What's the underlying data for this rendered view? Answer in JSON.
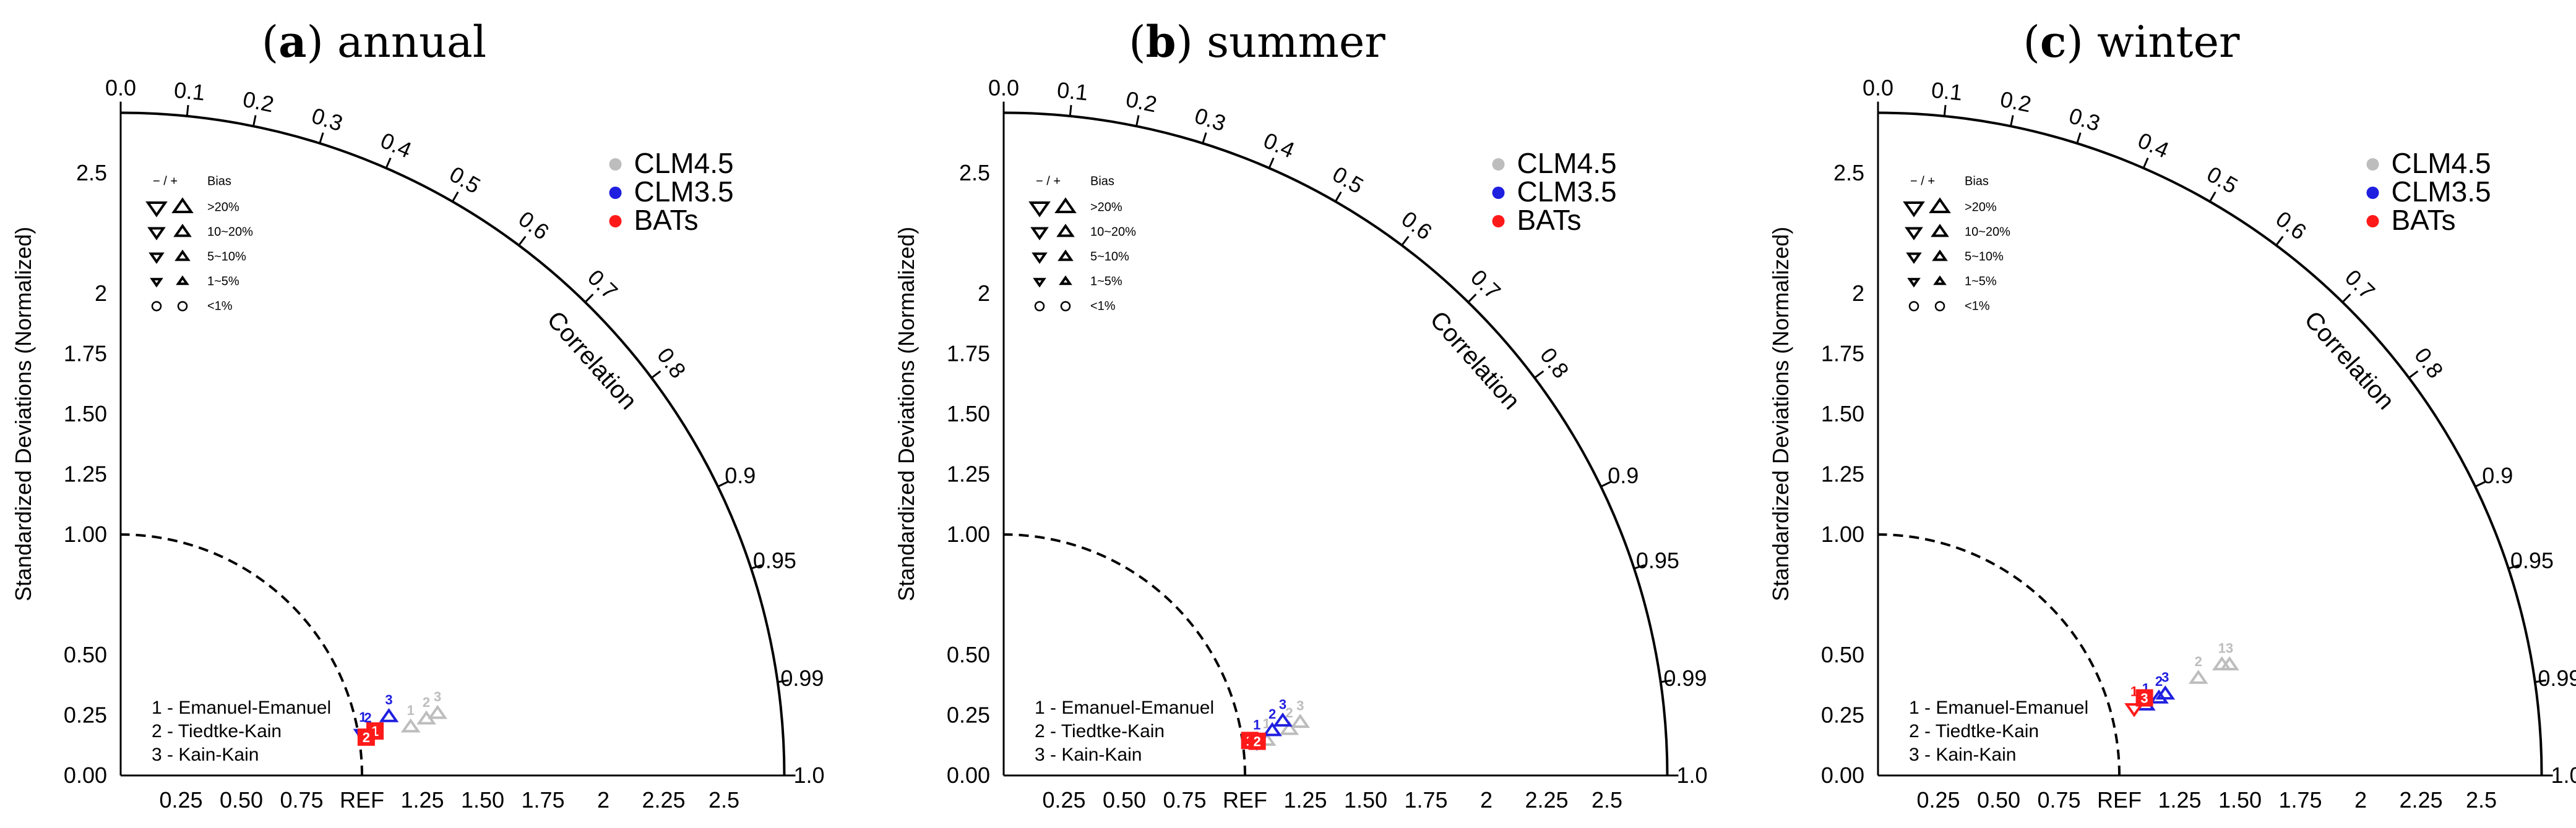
{
  "chart_data": [
    {
      "type": "scatter",
      "panel_letter": "(a)",
      "title": "annual",
      "points": [
        {
          "model": "CLM4.5",
          "exp": "1",
          "sd": 1.22,
          "corr": 0.985,
          "shape": "up"
        },
        {
          "model": "CLM4.5",
          "exp": "2",
          "sd": 1.29,
          "corr": 0.982,
          "shape": "up"
        },
        {
          "model": "CLM4.5",
          "exp": "3",
          "sd": 1.34,
          "corr": 0.98,
          "shape": "up"
        },
        {
          "model": "CLM3.5",
          "exp": "1",
          "sd": 1.02,
          "corr": 0.984,
          "shape": "down"
        },
        {
          "model": "CLM3.5",
          "exp": "2",
          "sd": 1.04,
          "corr": 0.985,
          "shape": "down"
        },
        {
          "model": "CLM3.5",
          "exp": "3",
          "sd": 1.14,
          "corr": 0.975,
          "shape": "up"
        },
        {
          "model": "BATs",
          "exp": "1",
          "sd": 1.07,
          "corr": 0.985,
          "shape": "square"
        },
        {
          "model": "BATs",
          "exp": "2",
          "sd": 1.03,
          "corr": 0.988,
          "shape": "square"
        }
      ]
    },
    {
      "type": "scatter",
      "panel_letter": "(b)",
      "title": "summer",
      "points": [
        {
          "model": "CLM4.5",
          "exp": "1",
          "sd": 1.1,
          "corr": 0.99,
          "shape": "up"
        },
        {
          "model": "CLM4.5",
          "exp": "2",
          "sd": 1.2,
          "corr": 0.986,
          "shape": "up"
        },
        {
          "model": "CLM4.5",
          "exp": "3",
          "sd": 1.25,
          "corr": 0.983,
          "shape": "up"
        },
        {
          "model": "CLM3.5",
          "exp": "1",
          "sd": 1.06,
          "corr": 0.99,
          "shape": "down"
        },
        {
          "model": "CLM3.5",
          "exp": "2",
          "sd": 1.13,
          "corr": 0.985,
          "shape": "up"
        },
        {
          "model": "CLM3.5",
          "exp": "3",
          "sd": 1.18,
          "corr": 0.98,
          "shape": "up"
        },
        {
          "model": "BATs",
          "exp": "1",
          "sd": 1.03,
          "corr": 0.99,
          "shape": "square"
        },
        {
          "model": "BATs",
          "exp": "2",
          "sd": 1.06,
          "corr": 0.991,
          "shape": "square"
        }
      ]
    },
    {
      "type": "scatter",
      "panel_letter": "(c)",
      "title": "winter",
      "points": [
        {
          "model": "CLM4.5",
          "exp": "1",
          "sd": 1.5,
          "corr": 0.95,
          "shape": "up"
        },
        {
          "model": "CLM4.5",
          "exp": "2",
          "sd": 1.39,
          "corr": 0.955,
          "shape": "up"
        },
        {
          "model": "CLM4.5",
          "exp": "3",
          "sd": 1.53,
          "corr": 0.952,
          "shape": "up"
        },
        {
          "model": "CLM3.5",
          "exp": "1",
          "sd": 1.15,
          "corr": 0.965,
          "shape": "up"
        },
        {
          "model": "CLM3.5",
          "exp": "2",
          "sd": 1.21,
          "corr": 0.962,
          "shape": "up"
        },
        {
          "model": "CLM3.5",
          "exp": "3",
          "sd": 1.24,
          "corr": 0.96,
          "shape": "up"
        },
        {
          "model": "BATs",
          "exp": "1",
          "sd": 1.1,
          "corr": 0.965,
          "shape": "down"
        },
        {
          "model": "BATs",
          "exp": "3",
          "sd": 1.15,
          "corr": 0.96,
          "shape": "square"
        }
      ]
    }
  ],
  "shared": {
    "y_label": "Standardized Deviations (Normalized)",
    "corr_label": "Correlation",
    "ref_label": "REF",
    "x_ticks": [
      "0.25",
      "0.50",
      "0.75",
      "REF",
      "1.25",
      "1.50",
      "1.75",
      "2",
      "2.25",
      "2.5"
    ],
    "x_tick_values": [
      0.25,
      0.5,
      0.75,
      1.0,
      1.25,
      1.5,
      1.75,
      2.0,
      2.25,
      2.5
    ],
    "y_ticks": [
      "0.00",
      "0.25",
      "0.50",
      "1.00",
      "1.25",
      "1.50",
      "1.75",
      "2",
      "2.5"
    ],
    "y_tick_values": [
      0,
      0.25,
      0.5,
      1.0,
      1.25,
      1.5,
      1.75,
      2.0,
      2.5
    ],
    "corr_ticks": [
      "0.0",
      "0.1",
      "0.2",
      "0.3",
      "0.4",
      "0.5",
      "0.6",
      "0.7",
      "0.8",
      "0.9",
      "0.95",
      "0.99",
      "1.0"
    ],
    "corr_tick_values": [
      0.0,
      0.1,
      0.2,
      0.3,
      0.4,
      0.5,
      0.6,
      0.7,
      0.8,
      0.9,
      0.95,
      0.99,
      1.0
    ],
    "sd_max": 2.75,
    "bias_legend": {
      "header_sign": "− / +",
      "header_bias": "Bias",
      "rows": [
        ">20%",
        "10~20%",
        "5~10%",
        "1~5%",
        "<1%"
      ]
    },
    "model_legend": [
      {
        "name": "CLM4.5",
        "color": "#bdbdbd"
      },
      {
        "name": "CLM3.5",
        "color": "#1f1fe0"
      },
      {
        "name": "BATs",
        "color": "#ff1a1a"
      }
    ],
    "experiments": [
      "1 - Emanuel-Emanuel",
      "2 - Tiedtke-Kain",
      "3 - Kain-Kain"
    ]
  }
}
